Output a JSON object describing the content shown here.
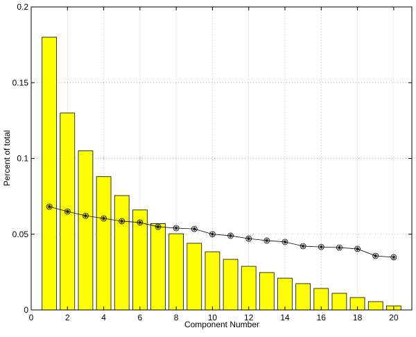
{
  "chart_data": {
    "type": "bar-line",
    "x_label": "Component Number",
    "y_label": "Percent of total",
    "x": [
      1,
      2,
      3,
      4,
      5,
      6,
      7,
      8,
      9,
      10,
      11,
      12,
      13,
      14,
      15,
      16,
      17,
      18,
      19,
      20
    ],
    "series": [
      {
        "type": "bar",
        "color": "#ffff00",
        "values": [
          0.18,
          0.13,
          0.105,
          0.088,
          0.0755,
          0.066,
          0.057,
          0.0503,
          0.044,
          0.0384,
          0.0334,
          0.0288,
          0.0247,
          0.021,
          0.0174,
          0.0142,
          0.011,
          0.0082,
          0.0055,
          0.0027
        ]
      },
      {
        "type": "line",
        "color": "#000000",
        "values": [
          0.0682,
          0.065,
          0.0622,
          0.0604,
          0.0586,
          0.0577,
          0.0549,
          0.054,
          0.0535,
          0.05,
          0.049,
          0.0471,
          0.0458,
          0.0449,
          0.0421,
          0.0416,
          0.0412,
          0.0403,
          0.0357,
          0.0348
        ]
      }
    ],
    "xlim": [
      0,
      21
    ],
    "xticks": [
      0,
      2,
      4,
      6,
      8,
      10,
      12,
      14,
      16,
      18,
      20
    ],
    "ylim": [
      0,
      0.2
    ],
    "yticks": [
      0,
      0.05,
      0.1,
      0.15,
      0.2
    ],
    "grid": true
  }
}
